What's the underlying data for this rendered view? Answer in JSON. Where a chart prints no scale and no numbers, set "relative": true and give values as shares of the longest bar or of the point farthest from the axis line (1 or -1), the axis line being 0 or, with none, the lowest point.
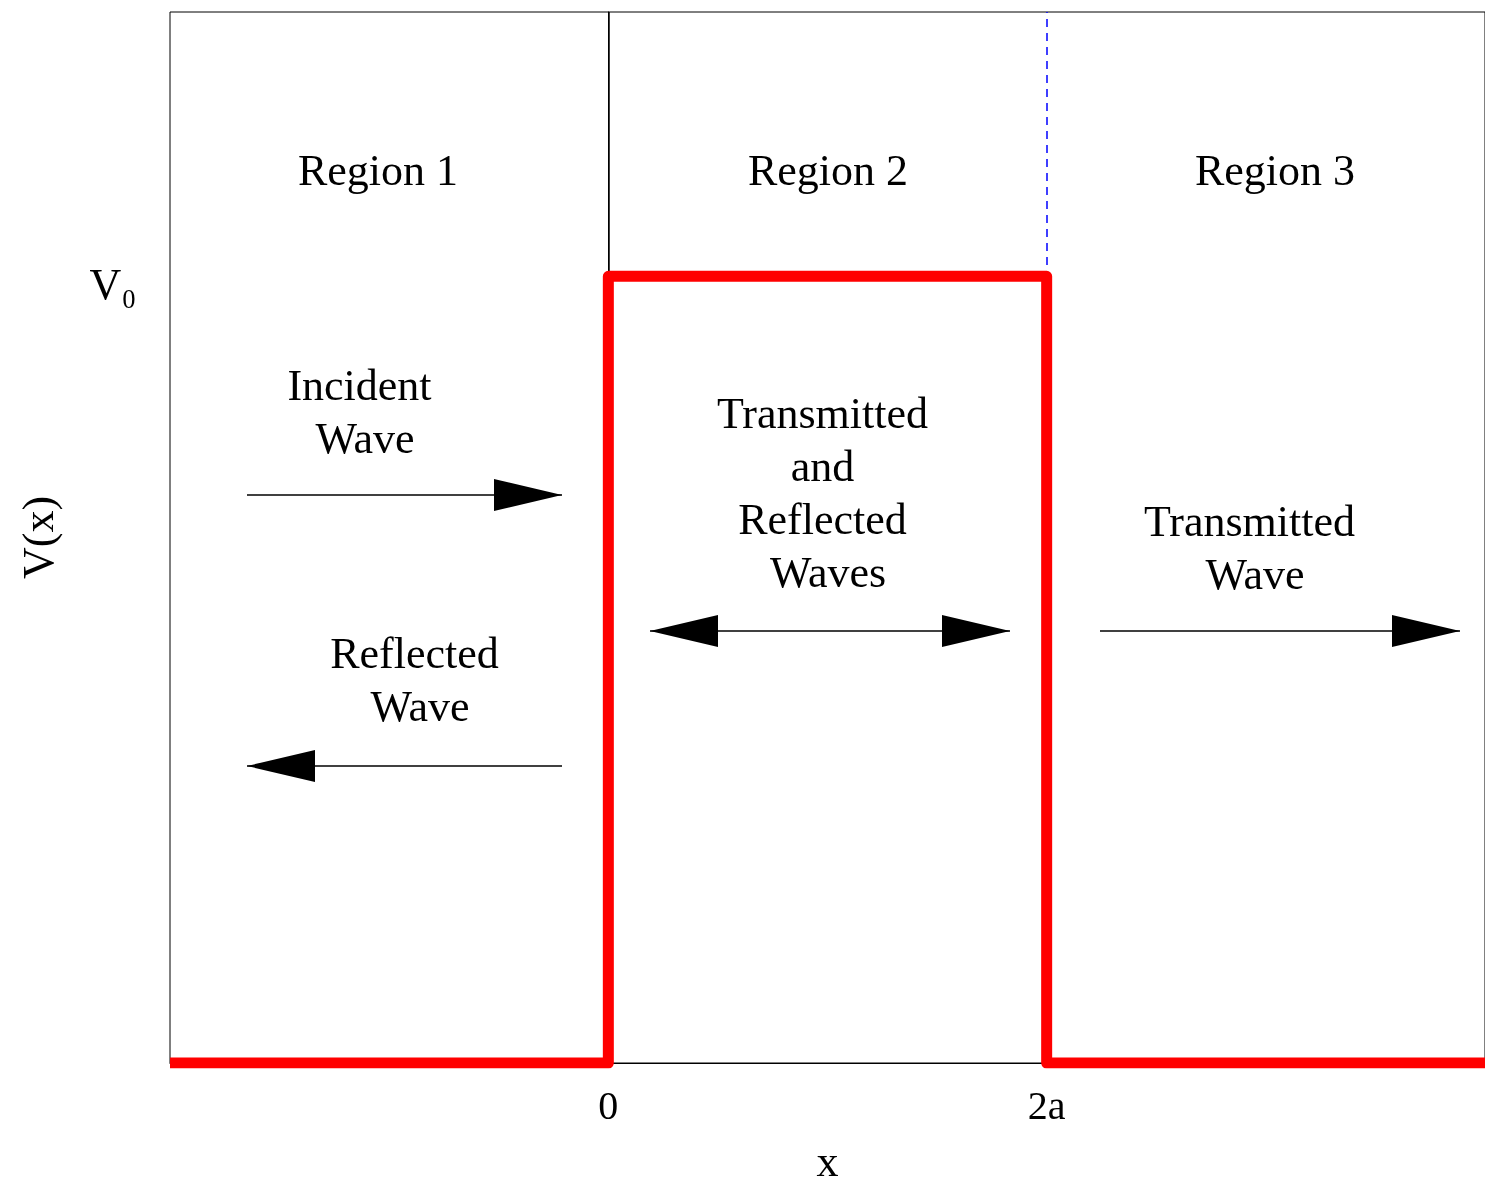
{
  "chart_data": {
    "type": "line",
    "xlabel": "x",
    "ylabel": "V(x)",
    "relative": true,
    "x": [
      -2,
      0,
      0,
      2,
      2,
      4
    ],
    "series": [
      {
        "color": "#ff0000",
        "values": [
          0,
          0,
          1,
          1,
          0,
          0
        ]
      }
    ],
    "xlim": [
      -2,
      4
    ],
    "xticks": [
      0,
      {
        "value": 2,
        "label": "2a"
      }
    ],
    "ref_lines": [
      {
        "axis": "x",
        "value": 0,
        "color": "#000000",
        "line_style": "solid"
      },
      {
        "axis": "x",
        "value": 2,
        "color": "#0000ff",
        "line_style": "dashed"
      }
    ],
    "annotations": [
      "V₀",
      "Region 1",
      "Region 2",
      "Region 3",
      "Incident Wave",
      "Reflected Wave",
      "Transmitted and Reflected Waves",
      "Transmitted Wave"
    ],
    "grid": false,
    "marker": "none",
    "line_style": "solid"
  }
}
